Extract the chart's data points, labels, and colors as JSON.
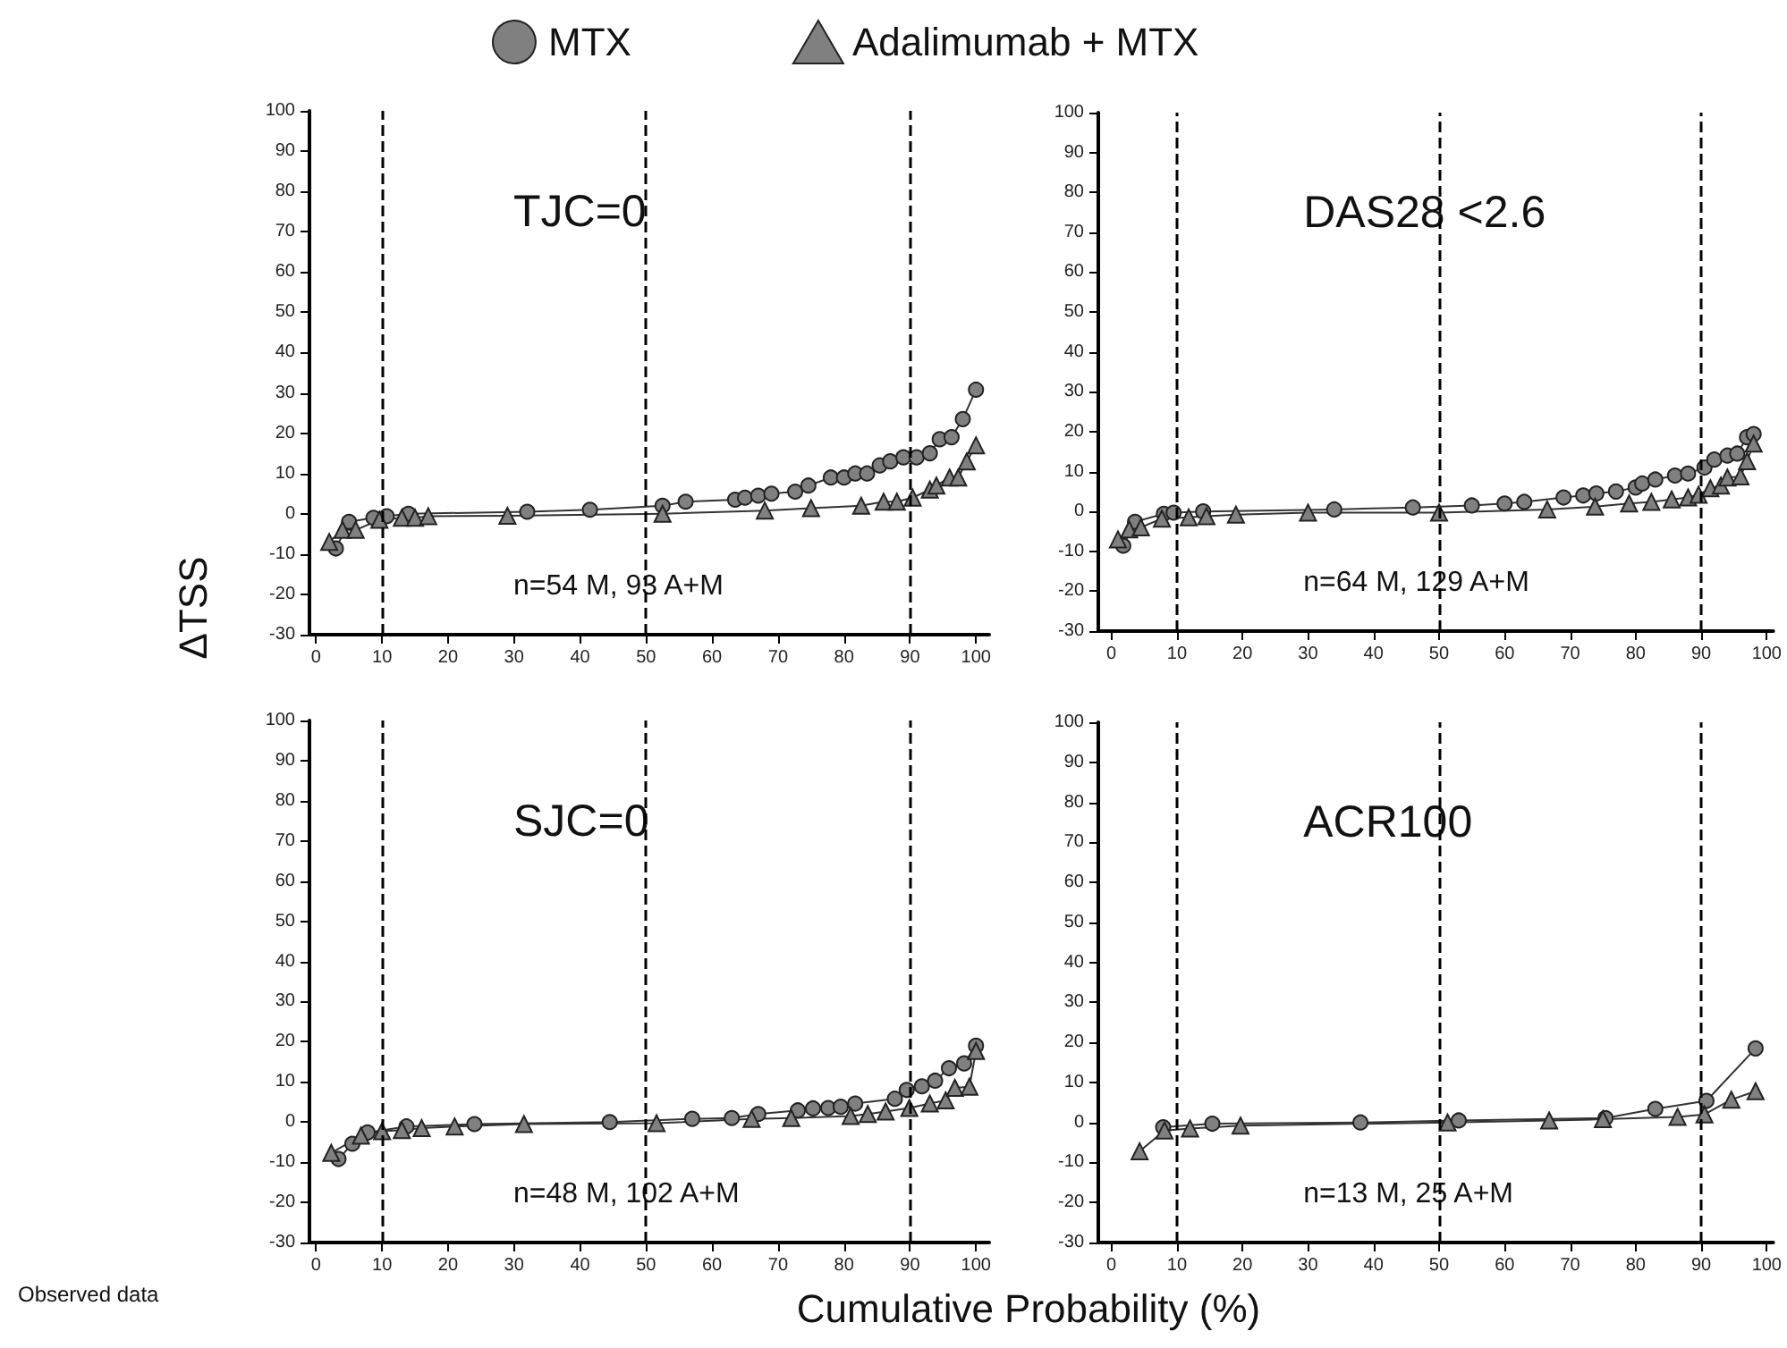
{
  "chart_data": [
    {
      "type": "line",
      "title": "TJC=0",
      "ylabel": "ΔTSS",
      "legend": "top",
      "grid": false,
      "line_style": "solid",
      "annotations": [
        "n=54 M, 93 A+M"
      ],
      "xlim": [
        -1,
        102
      ],
      "xticks": [
        0,
        10,
        20,
        30,
        40,
        50,
        60,
        70,
        80,
        90,
        100
      ],
      "ylim": [
        -30,
        100
      ],
      "yticks": [
        -30,
        -20,
        -10,
        0,
        10,
        20,
        30,
        40,
        50,
        60,
        70,
        80,
        90,
        100
      ],
      "ref_lines": [
        {
          "axis": "x",
          "value": 10,
          "line_style": "dashed",
          "color": "#000000"
        },
        {
          "axis": "x",
          "value": 50,
          "line_style": "dashed",
          "color": "#000000"
        },
        {
          "axis": "x",
          "value": 90,
          "line_style": "dashed",
          "color": "#000000"
        }
      ],
      "series": [
        {
          "name": "MTX",
          "color": "#808080",
          "marker": "circle",
          "x": [
            3,
            5,
            8.7,
            10.7,
            14,
            32,
            41.5,
            52.5,
            56,
            63.5,
            65,
            67,
            69,
            72.6,
            74.6,
            78,
            80,
            81.7,
            83.5,
            85.4,
            87,
            89,
            91,
            93,
            94.5,
            96.3,
            98,
            100
          ],
          "values": [
            -8.6,
            -2,
            -1,
            -0.6,
            0,
            0.5,
            1,
            2,
            3,
            3.5,
            4,
            4.5,
            5,
            5.5,
            7,
            9,
            9,
            10,
            10,
            12,
            13,
            14,
            14,
            15,
            18.5,
            19,
            23.5,
            30.8
          ]
        },
        {
          "name": "Adalimumab + MTX",
          "color": "#808080",
          "marker": "triangle",
          "x": [
            2,
            4,
            6,
            9.6,
            13,
            15,
            17,
            29,
            52.5,
            68,
            75,
            82.6,
            86,
            88,
            90.4,
            93,
            94,
            96,
            97.3,
            98.6,
            100
          ],
          "values": [
            -7,
            -4,
            -4,
            -1.5,
            -1,
            -1,
            -0.6,
            -0.5,
            0,
            0.8,
            1.4,
            2,
            3,
            3,
            4,
            6,
            7,
            9,
            9,
            13,
            17
          ]
        }
      ]
    },
    {
      "type": "line",
      "title": "DAS28 <2.6",
      "legend": false,
      "grid": false,
      "line_style": "solid",
      "annotations": [
        "n=64 M, 129 A+M"
      ],
      "xlim": [
        -2,
        101
      ],
      "xticks": [
        0,
        10,
        20,
        30,
        40,
        50,
        60,
        70,
        80,
        90,
        100
      ],
      "ylim": [
        -30,
        100
      ],
      "yticks": [
        -30,
        -20,
        -10,
        0,
        10,
        20,
        30,
        40,
        50,
        60,
        70,
        80,
        90,
        100
      ],
      "ref_lines": [
        {
          "axis": "x",
          "value": 10,
          "line_style": "dashed",
          "color": "#000000"
        },
        {
          "axis": "x",
          "value": 50,
          "line_style": "dashed",
          "color": "#000000"
        },
        {
          "axis": "x",
          "value": 90,
          "line_style": "dashed",
          "color": "#000000"
        }
      ],
      "series": [
        {
          "color": "#808080",
          "marker": "circle",
          "x": [
            1.8,
            3.6,
            8,
            9.5,
            14,
            34,
            46,
            55,
            60,
            63,
            69,
            72,
            74,
            77,
            80,
            81,
            83,
            86,
            88,
            90.5,
            92,
            94,
            95.5,
            97,
            98
          ],
          "values": [
            -8.6,
            -2.6,
            -0.6,
            -0.3,
            0,
            0.5,
            1,
            1.5,
            2,
            2.4,
            3.5,
            4,
            4.5,
            5,
            6,
            7,
            8,
            9,
            9.5,
            11,
            13,
            14,
            14.5,
            18.6,
            19.4
          ]
        },
        {
          "color": "#808080",
          "marker": "triangle",
          "x": [
            1,
            2.7,
            4.5,
            7.7,
            11.8,
            14.5,
            19,
            30,
            50,
            66.5,
            73.8,
            79,
            82.4,
            85.5,
            88,
            89.6,
            91.4,
            93,
            94,
            96,
            97,
            98
          ],
          "values": [
            -7,
            -4.5,
            -4,
            -1.8,
            -1.5,
            -1.2,
            -0.8,
            -0.3,
            -0.3,
            0.5,
            1.2,
            2,
            2.4,
            3,
            3.5,
            4.2,
            5.8,
            6.5,
            8.5,
            8.8,
            12.6,
            17
          ]
        }
      ]
    },
    {
      "type": "line",
      "title": "SJC=0",
      "xlabel": "Cumulative Probability (%)",
      "legend": false,
      "grid": false,
      "line_style": "solid",
      "annotations": [
        "n=48 M, 102 A+M",
        "Observed data"
      ],
      "xlim": [
        -1,
        102
      ],
      "xticks": [
        0,
        10,
        20,
        30,
        40,
        50,
        60,
        70,
        80,
        90,
        100
      ],
      "ylim": [
        -30,
        100
      ],
      "yticks": [
        -30,
        -20,
        -10,
        0,
        10,
        20,
        30,
        40,
        50,
        60,
        70,
        80,
        90,
        100
      ],
      "ref_lines": [
        {
          "axis": "x",
          "value": 10,
          "line_style": "dashed",
          "color": "#000000"
        },
        {
          "axis": "x",
          "value": 50,
          "line_style": "dashed",
          "color": "#000000"
        },
        {
          "axis": "x",
          "value": 90,
          "line_style": "dashed",
          "color": "#000000"
        }
      ],
      "series": [
        {
          "color": "#808080",
          "marker": "circle",
          "x": [
            3.4,
            5.5,
            7.8,
            13.7,
            24,
            44.5,
            57,
            63,
            67,
            73,
            75.3,
            77.6,
            79.5,
            81.7,
            87.7,
            89.5,
            91.8,
            93.8,
            95.9,
            98.2,
            100
          ],
          "values": [
            -9.2,
            -5.4,
            -2.6,
            -1.1,
            -0.5,
            0,
            0.8,
            1,
            2,
            2.9,
            3.4,
            3.5,
            3.8,
            4.6,
            5.8,
            8,
            8.9,
            10.3,
            13.4,
            14.6,
            19
          ]
        },
        {
          "color": "#808080",
          "marker": "triangle",
          "x": [
            2.3,
            6.8,
            10,
            13,
            16,
            21,
            31.5,
            51.6,
            66,
            72,
            81,
            83.6,
            86.3,
            89.9,
            93,
            95.4,
            96.8,
            99,
            100
          ],
          "values": [
            -7.7,
            -3.4,
            -2.3,
            -2,
            -1.5,
            -1.1,
            -0.5,
            -0.3,
            0.8,
            1,
            1.5,
            2,
            2.6,
            3.5,
            4.6,
            5.4,
            8.5,
            8.8,
            17.7
          ]
        }
      ]
    },
    {
      "type": "line",
      "title": "ACR100",
      "legend": false,
      "grid": false,
      "line_style": "solid",
      "annotations": [
        "n=13 M, 25 A+M"
      ],
      "xlim": [
        -2,
        101
      ],
      "xticks": [
        0,
        10,
        20,
        30,
        40,
        50,
        60,
        70,
        80,
        90,
        100
      ],
      "ylim": [
        -30,
        100
      ],
      "yticks": [
        -30,
        -20,
        -10,
        0,
        10,
        20,
        30,
        40,
        50,
        60,
        70,
        80,
        90,
        100
      ],
      "ref_lines": [
        {
          "axis": "x",
          "value": 10,
          "line_style": "dashed",
          "color": "#000000"
        },
        {
          "axis": "x",
          "value": 50,
          "line_style": "dashed",
          "color": "#000000"
        },
        {
          "axis": "x",
          "value": 90,
          "line_style": "dashed",
          "color": "#000000"
        }
      ],
      "series": [
        {
          "color": "#808080",
          "marker": "circle",
          "x": [
            7.9,
            15.4,
            38,
            53,
            75.4,
            83,
            90.8,
            98.3
          ],
          "values": [
            -1.2,
            -0.3,
            0,
            0.5,
            1.1,
            3.4,
            5.4,
            18.5
          ]
        },
        {
          "color": "#808080",
          "marker": "triangle",
          "x": [
            4.3,
            8.1,
            12,
            19.7,
            51.3,
            66.8,
            75,
            86.4,
            90.5,
            94.6,
            98.3
          ],
          "values": [
            -7.2,
            -2,
            -1.5,
            -0.8,
            0,
            0.5,
            0.8,
            1.4,
            2,
            5.7,
            7.8
          ]
        }
      ]
    }
  ]
}
